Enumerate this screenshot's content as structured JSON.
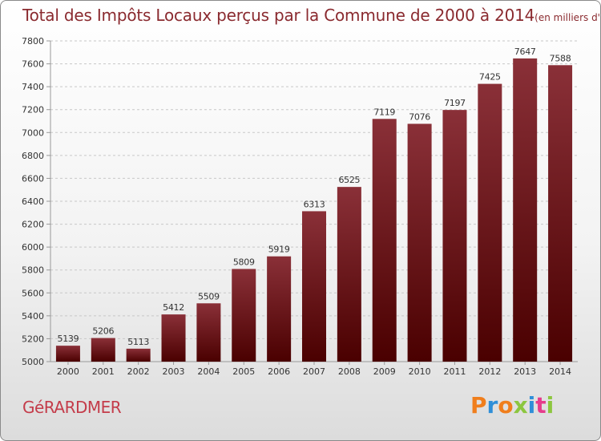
{
  "header": {
    "title": "Total des Impôts Locaux perçus par la Commune de 2000 à 2014",
    "unit": "(en milliers d'€)"
  },
  "footer": {
    "commune": "GéRARDMER",
    "brand": "Proxiti"
  },
  "colors": {
    "bar_top": "#8a3038",
    "bar_bottom": "#4a0000",
    "title": "#8a2a2f",
    "brand_letters": [
      "#f07e1c",
      "#2f8fd8",
      "#f07e1c",
      "#8cc63f",
      "#2f8fd8",
      "#e63c8c",
      "#8cc63f"
    ]
  },
  "chart_data": {
    "type": "bar",
    "title": "Total des Impôts Locaux perçus par la Commune de 2000 à 2014",
    "subtitle": "(en milliers d'€)",
    "xlabel": "",
    "ylabel": "",
    "categories": [
      "2000",
      "2001",
      "2002",
      "2003",
      "2004",
      "2005",
      "2006",
      "2007",
      "2008",
      "2009",
      "2010",
      "2011",
      "2012",
      "2013",
      "2014"
    ],
    "values": [
      5139,
      5206,
      5113,
      5412,
      5509,
      5809,
      5919,
      6313,
      6525,
      7119,
      7076,
      7197,
      7425,
      7647,
      7588
    ],
    "ylim": [
      5000,
      7800
    ],
    "yticks": [
      5000,
      5200,
      5400,
      5600,
      5800,
      6000,
      6200,
      6400,
      6600,
      6800,
      7000,
      7200,
      7400,
      7600,
      7800
    ],
    "grid": true,
    "data_labels": true
  }
}
